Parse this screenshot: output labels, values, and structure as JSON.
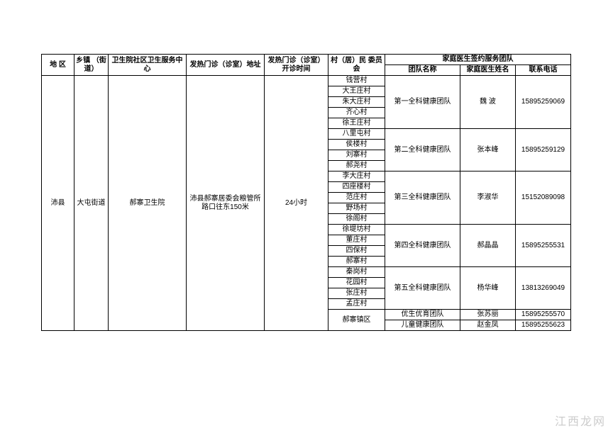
{
  "headers": {
    "region": "地 区",
    "township": "乡镇\n（街道）",
    "clinic": "卫生院社区卫生服务中心",
    "clinic_addr": "发热门诊（诊室）地址",
    "open_time": "发热门诊（诊室）\n开诊时间",
    "village_committee": "村（居）民\n委员会",
    "family_team_header": "家庭医生签约服务团队",
    "team_name": "团队名称",
    "doctor_name": "家庭医生姓名",
    "phone": "联系电话"
  },
  "region": "沛县",
  "township": "大屯街道",
  "clinic": "郝寨卫生院",
  "clinic_addr": "沛县郝寨居委会粮管所路口往东150米",
  "open_time": "24小时",
  "villages": [
    "钱营村",
    "大王庄村",
    "朱大庄村",
    "齐心村",
    "徐王庄村",
    "八里屯村",
    "侯楼村",
    "刘寨村",
    "郝尧村",
    "李大庄村",
    "四座楼村",
    "范庄村",
    "野场村",
    "徐阁村",
    "徐堤坊村",
    "董庄村",
    "四保村",
    "郝寨村",
    "秦岗村",
    "花园村",
    "张庄村",
    "孟庄村"
  ],
  "last_village": "郝寨镇区",
  "teams": [
    {
      "name": "第一全科健康团队",
      "doctor": "魏   波",
      "phone": "15895259069",
      "span": 5
    },
    {
      "name": "第二全科健康团队",
      "doctor": "张本峰",
      "phone": "15895259129",
      "span": 4
    },
    {
      "name": "第三全科健康团队",
      "doctor": "李淑华",
      "phone": "15152089098",
      "span": 5
    },
    {
      "name": "第四全科健康团队",
      "doctor": "郝晶晶",
      "phone": "15895255531",
      "span": 4
    },
    {
      "name": "第五全科健康团队",
      "doctor": "杨华峰",
      "phone": "13813269049",
      "span": 4
    }
  ],
  "extra_rows": [
    {
      "name": "优生优育团队",
      "doctor": "张苏丽",
      "phone": "15895255570"
    },
    {
      "name": "儿童健康团队",
      "doctor": "赵金凤",
      "phone": "15895255623"
    }
  ],
  "watermark": "江西龙网"
}
